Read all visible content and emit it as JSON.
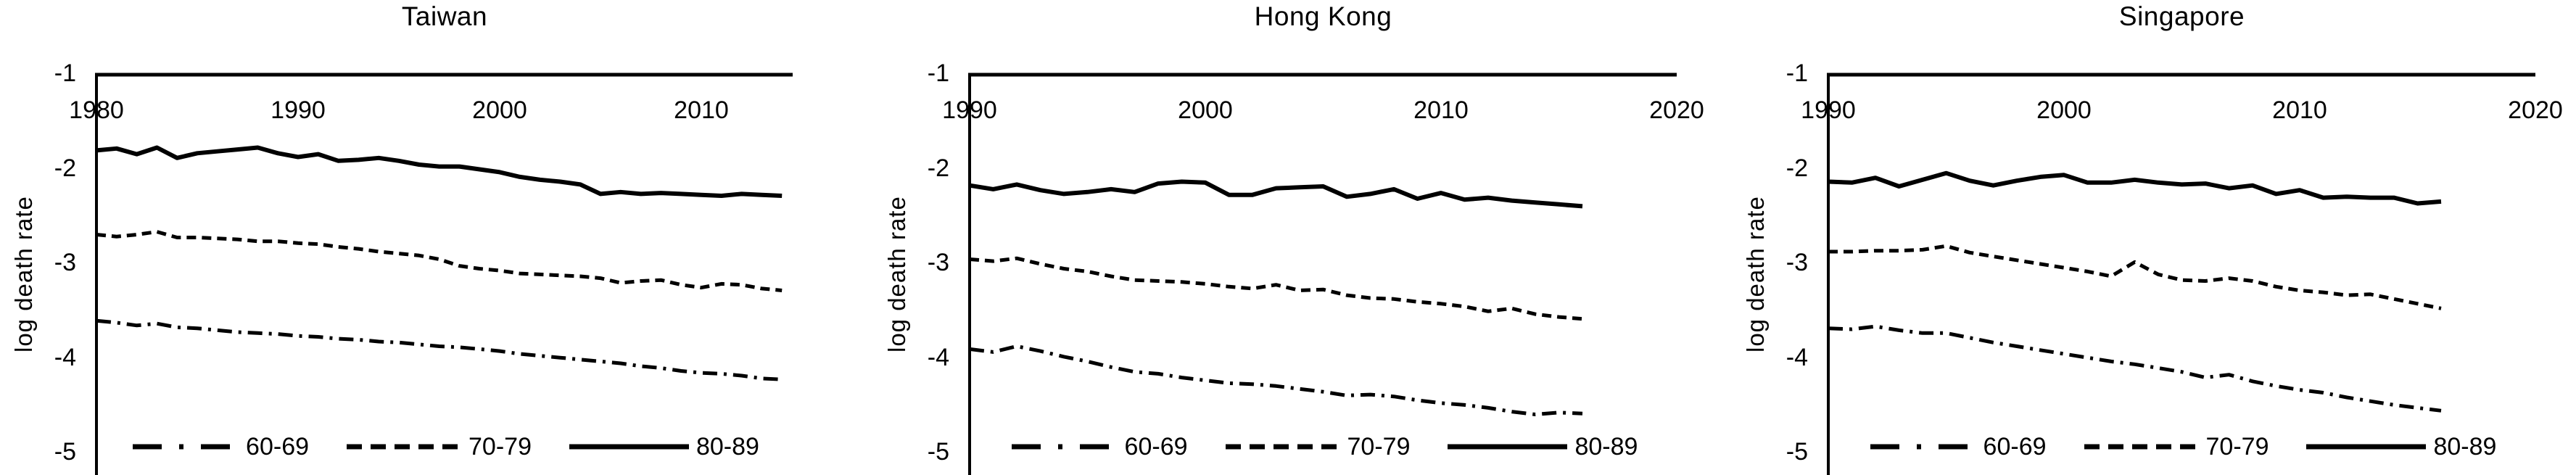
{
  "page": {
    "background": "#ffffff",
    "text_color": "#000000"
  },
  "chart_data": [
    {
      "type": "line",
      "title": "Taiwan",
      "xlabel": "",
      "ylabel": "log death rate",
      "x_start": 1980,
      "x_end": 2014,
      "xticks": [
        1980,
        1990,
        2000,
        2010
      ],
      "yticks": [
        -1,
        -2,
        -3,
        -4,
        -5
      ],
      "xlim": [
        1980,
        2015
      ],
      "ylim": [
        -5,
        -1
      ],
      "grid": false,
      "legend_position": "bottom-center",
      "line_color": "#000000",
      "series": [
        {
          "name": "60-69",
          "linestyle": "dashdot",
          "values": [
            -3.6,
            -3.62,
            -3.65,
            -3.63,
            -3.67,
            -3.68,
            -3.7,
            -3.72,
            -3.73,
            -3.74,
            -3.76,
            -3.77,
            -3.79,
            -3.8,
            -3.82,
            -3.83,
            -3.85,
            -3.87,
            -3.88,
            -3.9,
            -3.92,
            -3.95,
            -3.97,
            -3.99,
            -4.01,
            -4.03,
            -4.05,
            -4.08,
            -4.1,
            -4.13,
            -4.15,
            -4.16,
            -4.18,
            -4.21,
            -4.22
          ]
        },
        {
          "name": "70-79",
          "linestyle": "dashed",
          "values": [
            -2.69,
            -2.71,
            -2.69,
            -2.66,
            -2.72,
            -2.72,
            -2.73,
            -2.74,
            -2.76,
            -2.76,
            -2.78,
            -2.79,
            -2.82,
            -2.84,
            -2.87,
            -2.89,
            -2.91,
            -2.95,
            -3.02,
            -3.05,
            -3.07,
            -3.1,
            -3.11,
            -3.12,
            -3.13,
            -3.15,
            -3.2,
            -3.18,
            -3.17,
            -3.22,
            -3.25,
            -3.21,
            -3.22,
            -3.26,
            -3.28
          ]
        },
        {
          "name": "80-89",
          "linestyle": "solid",
          "values": [
            -1.8,
            -1.78,
            -1.84,
            -1.77,
            -1.88,
            -1.83,
            -1.81,
            -1.79,
            -1.77,
            -1.83,
            -1.87,
            -1.84,
            -1.91,
            -1.9,
            -1.88,
            -1.91,
            -1.95,
            -1.97,
            -1.97,
            -2.0,
            -2.03,
            -2.08,
            -2.11,
            -2.13,
            -2.16,
            -2.26,
            -2.24,
            -2.26,
            -2.25,
            -2.26,
            -2.27,
            -2.28,
            -2.26,
            -2.27,
            -2.28
          ]
        }
      ]
    },
    {
      "type": "line",
      "title": "Hong Kong",
      "xlabel": "",
      "ylabel": "log death rate",
      "x_start": 1990,
      "x_end": 2016,
      "xticks": [
        1990,
        2000,
        2010,
        2020
      ],
      "yticks": [
        -1,
        -2,
        -3,
        -4,
        -5
      ],
      "xlim": [
        1990,
        2020
      ],
      "ylim": [
        -5,
        -1
      ],
      "grid": false,
      "legend_position": "bottom-center",
      "line_color": "#000000",
      "series": [
        {
          "name": "60-69",
          "linestyle": "dashdot",
          "values": [
            -3.9,
            -3.93,
            -3.87,
            -3.92,
            -3.98,
            -4.03,
            -4.09,
            -4.14,
            -4.16,
            -4.2,
            -4.23,
            -4.26,
            -4.27,
            -4.29,
            -4.32,
            -4.35,
            -4.39,
            -4.38,
            -4.4,
            -4.44,
            -4.47,
            -4.49,
            -4.52,
            -4.56,
            -4.59,
            -4.57,
            -4.58
          ]
        },
        {
          "name": "70-79",
          "linestyle": "dashed",
          "values": [
            -2.95,
            -2.97,
            -2.94,
            -3.0,
            -3.05,
            -3.08,
            -3.13,
            -3.17,
            -3.18,
            -3.19,
            -3.21,
            -3.24,
            -3.26,
            -3.22,
            -3.28,
            -3.27,
            -3.33,
            -3.36,
            -3.37,
            -3.4,
            -3.42,
            -3.45,
            -3.5,
            -3.47,
            -3.53,
            -3.56,
            -3.58
          ]
        },
        {
          "name": "80-89",
          "linestyle": "solid",
          "values": [
            -2.17,
            -2.21,
            -2.16,
            -2.22,
            -2.26,
            -2.24,
            -2.21,
            -2.24,
            -2.15,
            -2.13,
            -2.14,
            -2.27,
            -2.27,
            -2.2,
            -2.19,
            -2.18,
            -2.29,
            -2.26,
            -2.21,
            -2.31,
            -2.25,
            -2.32,
            -2.3,
            -2.33,
            -2.35,
            -2.37,
            -2.39
          ]
        }
      ]
    },
    {
      "type": "line",
      "title": "Singapore",
      "xlabel": "",
      "ylabel": "log death rate",
      "x_start": 1990,
      "x_end": 2016,
      "xticks": [
        1990,
        2000,
        2010,
        2020
      ],
      "yticks": [
        -1,
        -2,
        -3,
        -4,
        -5
      ],
      "xlim": [
        1990,
        2020
      ],
      "ylim": [
        -5,
        -1
      ],
      "grid": false,
      "legend_position": "bottom-center",
      "line_color": "#000000",
      "series": [
        {
          "name": "60-69",
          "linestyle": "dashdot",
          "values": [
            -3.68,
            -3.69,
            -3.66,
            -3.7,
            -3.73,
            -3.73,
            -3.78,
            -3.83,
            -3.87,
            -3.91,
            -3.95,
            -3.99,
            -4.03,
            -4.06,
            -4.1,
            -4.14,
            -4.2,
            -4.17,
            -4.24,
            -4.29,
            -4.33,
            -4.36,
            -4.41,
            -4.45,
            -4.49,
            -4.52,
            -4.55
          ]
        },
        {
          "name": "70-79",
          "linestyle": "dashed",
          "values": [
            -2.87,
            -2.87,
            -2.86,
            -2.86,
            -2.85,
            -2.81,
            -2.88,
            -2.92,
            -2.96,
            -3.0,
            -3.04,
            -3.08,
            -3.13,
            -2.98,
            -3.11,
            -3.17,
            -3.18,
            -3.15,
            -3.18,
            -3.24,
            -3.28,
            -3.3,
            -3.33,
            -3.32,
            -3.37,
            -3.42,
            -3.47
          ]
        },
        {
          "name": "80-89",
          "linestyle": "solid",
          "values": [
            -2.13,
            -2.14,
            -2.09,
            -2.18,
            -2.11,
            -2.04,
            -2.12,
            -2.17,
            -2.12,
            -2.08,
            -2.06,
            -2.14,
            -2.14,
            -2.11,
            -2.14,
            -2.16,
            -2.15,
            -2.2,
            -2.17,
            -2.26,
            -2.22,
            -2.3,
            -2.29,
            -2.3,
            -2.3,
            -2.36,
            -2.34
          ]
        }
      ]
    }
  ]
}
